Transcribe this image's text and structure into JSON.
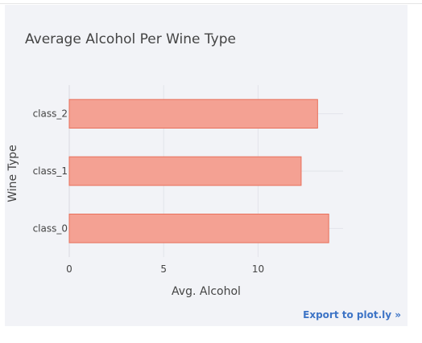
{
  "chart_data": {
    "type": "bar",
    "orientation": "horizontal",
    "title": "Average Alcohol Per Wine Type",
    "xlabel": "Avg. Alcohol",
    "ylabel": "Wine Type",
    "categories": [
      "class_0",
      "class_1",
      "class_2"
    ],
    "values": [
      13.74,
      12.28,
      13.15
    ],
    "xlim": [
      0,
      14.5
    ],
    "xticks": [
      0,
      5,
      10
    ],
    "bar_color": "#f4a193",
    "bar_border_color": "#e8705b",
    "grid": true
  },
  "export_label": "Export to plot.ly »",
  "colors": {
    "panel_bg": "#f2f3f7",
    "export_link": "#3d74c6"
  }
}
